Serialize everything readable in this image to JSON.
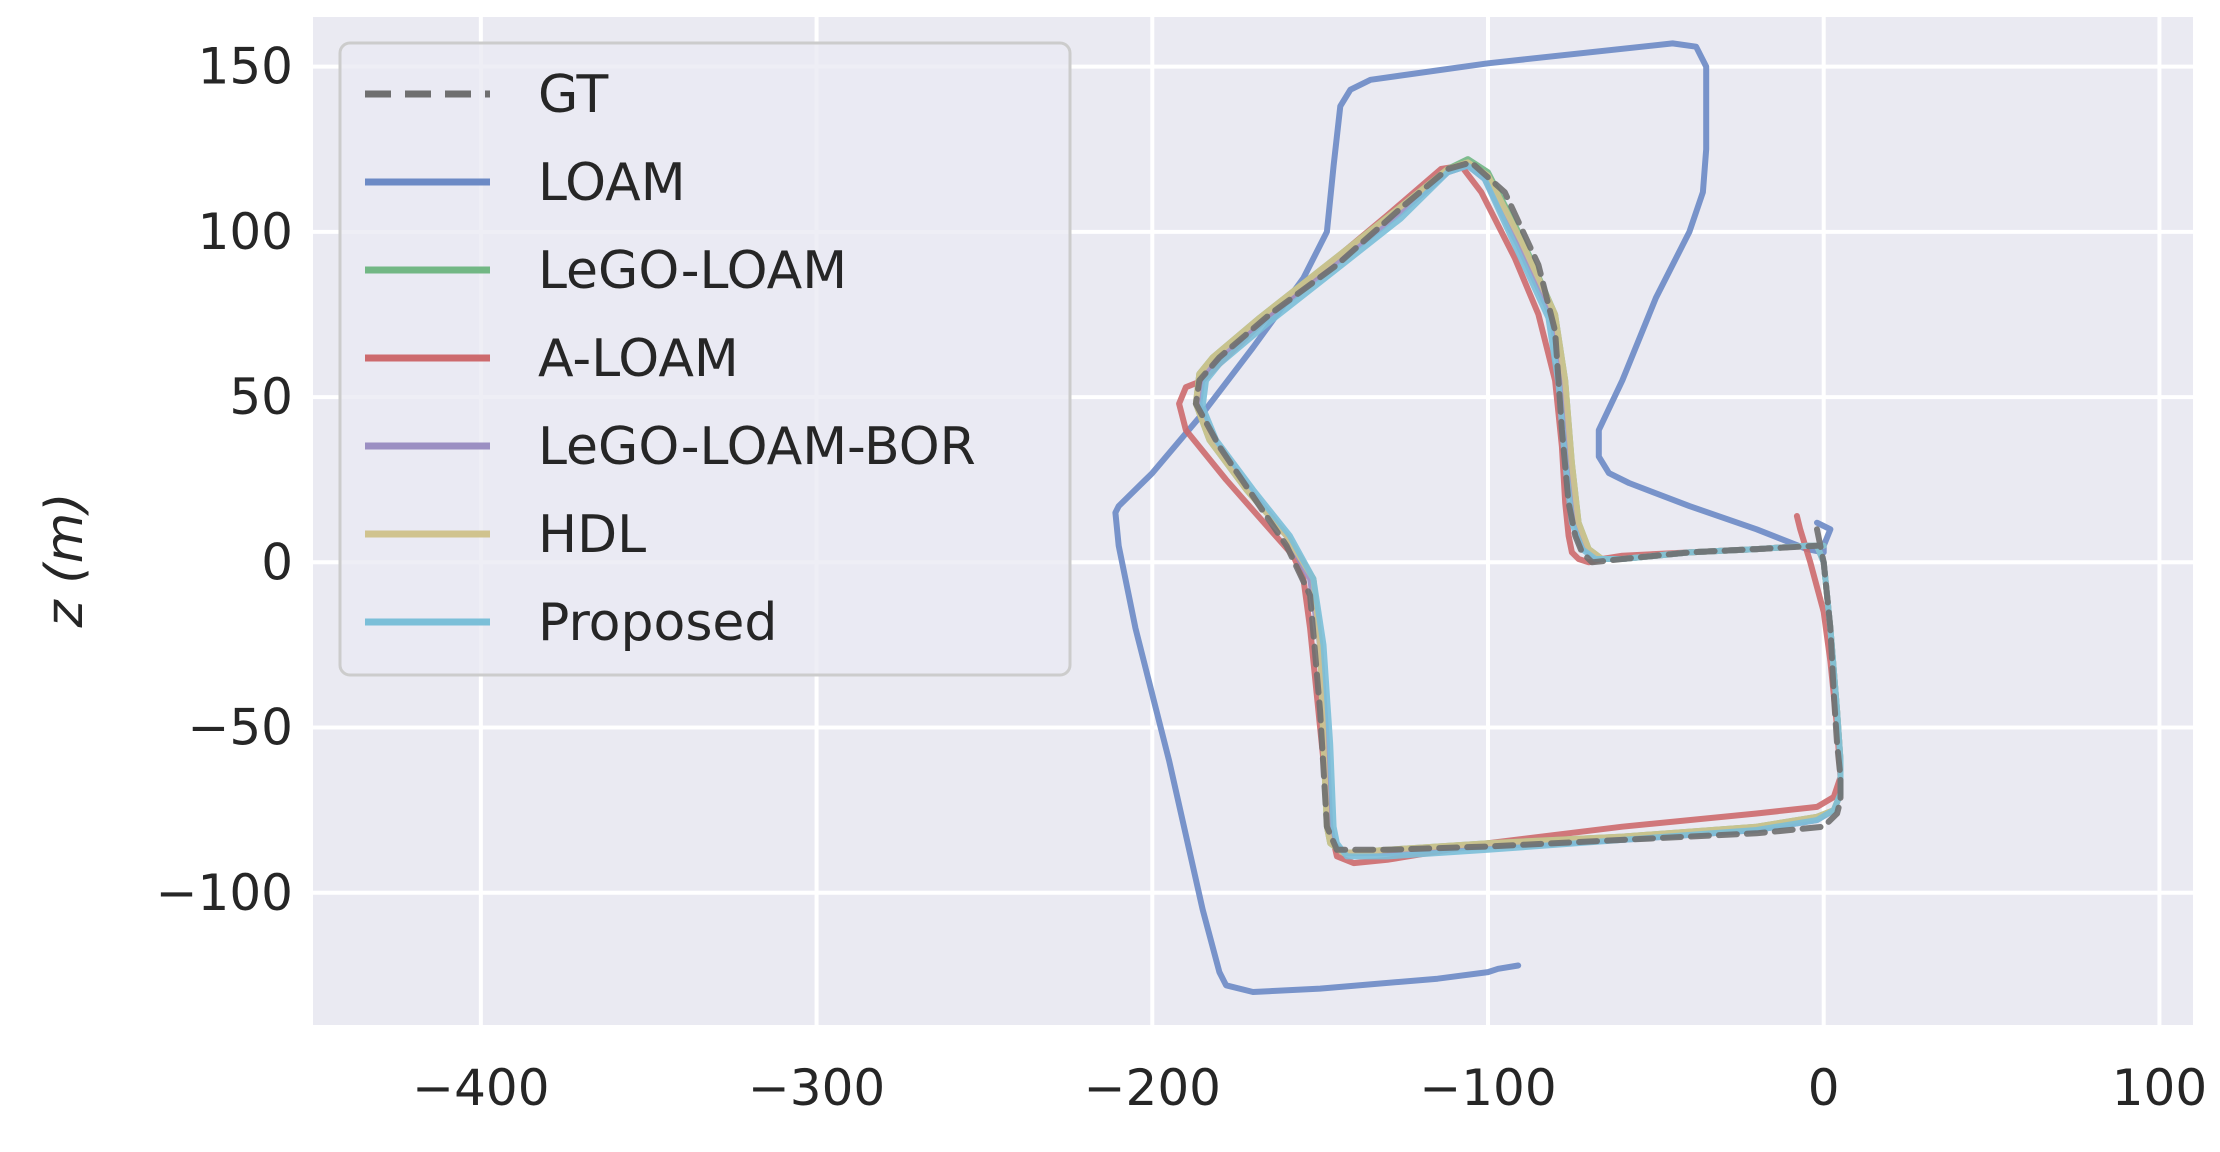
{
  "chart_data": {
    "type": "line",
    "title": "",
    "xlabel": "",
    "ylabel": "z (m)",
    "xlim": [
      -450,
      110
    ],
    "ylim": [
      -140,
      165
    ],
    "xticks": [
      -400,
      -300,
      -200,
      -100,
      0,
      100
    ],
    "yticks": [
      -100,
      -50,
      0,
      50,
      100,
      150
    ],
    "xtick_labels": [
      "−400",
      "−300",
      "−200",
      "−100",
      "0",
      "100"
    ],
    "ytick_labels": [
      "−100",
      "−50",
      "0",
      "50",
      "100",
      "150"
    ],
    "grid": true,
    "legend_position": "top-left",
    "colors": {
      "background": "#eaeaf2",
      "grid": "#ffffff",
      "GT": "#6f6f6f",
      "LOAM": "#6c8ac5",
      "LeGO-LOAM": "#72b784",
      "A-LOAM": "#cd6a6d",
      "LeGO-LOAM-BOR": "#9b8fc2",
      "HDL": "#d0c38e",
      "Proposed": "#7bbfd8"
    },
    "series": [
      {
        "name": "GT",
        "style": "dashed",
        "x": [
          -2,
          0,
          2,
          3,
          4,
          5,
          5,
          4,
          0,
          -20,
          -60,
          -100,
          -130,
          -145,
          -148,
          -150,
          -153,
          -160,
          -170,
          -180,
          -187,
          -186,
          -180,
          -165,
          -145,
          -125,
          -112,
          -105,
          -95,
          -85,
          -80,
          -78,
          -76,
          -74,
          -72,
          -69,
          -60,
          -40,
          -20,
          -2
        ],
        "y": [
          10,
          0,
          -20,
          -40,
          -55,
          -65,
          -72,
          -76,
          -80,
          -82,
          -84,
          -86,
          -87,
          -87,
          -80,
          -45,
          -10,
          5,
          20,
          35,
          48,
          55,
          62,
          75,
          90,
          108,
          119,
          121,
          112,
          90,
          70,
          40,
          18,
          8,
          3,
          0,
          1,
          3,
          4,
          5
        ]
      },
      {
        "name": "LOAM",
        "style": "solid",
        "x": [
          -91,
          -97,
          -100,
          -115,
          -150,
          -170,
          -178,
          -180,
          -185,
          -195,
          -205,
          -210,
          -211,
          -210,
          -200,
          -185,
          -170,
          -155,
          -148,
          -146,
          -144,
          -141,
          -135,
          -100,
          -45,
          -38,
          -35,
          -35,
          -36,
          -40,
          -50,
          -60,
          -67,
          -67,
          -64,
          -58,
          -40,
          -20,
          -5,
          0,
          0,
          2,
          -2
        ],
        "y": [
          -122,
          -123,
          -124,
          -126,
          -129,
          -130,
          -128,
          -124,
          -105,
          -60,
          -20,
          5,
          15,
          17,
          27,
          45,
          65,
          86,
          100,
          120,
          138,
          143,
          146,
          151,
          157,
          156,
          150,
          125,
          112,
          100,
          80,
          55,
          40,
          32,
          27,
          24,
          17,
          10,
          4,
          3,
          5,
          10,
          12
        ]
      },
      {
        "name": "LeGO-LOAM",
        "style": "solid",
        "x": [
          -2,
          0,
          2,
          4,
          5,
          5,
          3,
          -2,
          -20,
          -60,
          -100,
          -130,
          -143,
          -147,
          -148,
          -149,
          -150,
          -152,
          -160,
          -172,
          -183,
          -187,
          -186,
          -182,
          -168,
          -148,
          -128,
          -112,
          -106,
          -100,
          -90,
          -80,
          -77,
          -75,
          -73,
          -70,
          -66,
          -60,
          -40,
          -20,
          -5,
          0
        ],
        "y": [
          5,
          0,
          -20,
          -45,
          -60,
          -70,
          -75,
          -77,
          -80,
          -83,
          -85,
          -87,
          -88,
          -85,
          -80,
          -55,
          -25,
          -5,
          8,
          22,
          37,
          48,
          57,
          62,
          74,
          90,
          106,
          119,
          122,
          118,
          98,
          75,
          55,
          30,
          12,
          4,
          1,
          1,
          3,
          4,
          5,
          5
        ]
      },
      {
        "name": "A-LOAM",
        "style": "solid",
        "x": [
          -8,
          -7,
          -4,
          0,
          2,
          4,
          5,
          3,
          -2,
          -20,
          -60,
          -100,
          -130,
          -140,
          -145,
          -147,
          -150,
          -153,
          -155,
          -158,
          -165,
          -178,
          -190,
          -192,
          -190,
          -185,
          -170,
          -150,
          -130,
          -114,
          -108,
          -102,
          -92,
          -85,
          -80,
          -78,
          -77,
          -76,
          -75,
          -73,
          -70,
          -66,
          -60,
          -40,
          -20,
          -5
        ],
        "y": [
          14,
          10,
          0,
          -15,
          -30,
          -50,
          -65,
          -71,
          -74,
          -76,
          -80,
          -85,
          -90,
          -91,
          -89,
          -80,
          -50,
          -20,
          -5,
          2,
          10,
          25,
          40,
          48,
          53,
          55,
          70,
          88,
          105,
          119,
          120,
          112,
          92,
          75,
          55,
          35,
          18,
          8,
          3,
          1,
          0,
          1,
          2,
          3,
          4,
          5
        ]
      },
      {
        "name": "LeGO-LOAM-BOR",
        "style": "solid",
        "x": [
          -2,
          0,
          2,
          4,
          5,
          5,
          3,
          -2,
          -20,
          -60,
          -100,
          -130,
          -143,
          -146,
          -147,
          -148,
          -150,
          -153,
          -160,
          -171,
          -182,
          -186,
          -185,
          -181,
          -167,
          -147,
          -127,
          -112,
          -106,
          -101,
          -91,
          -81,
          -78,
          -76,
          -74,
          -71,
          -67,
          -60,
          -40,
          -20,
          -5,
          0
        ],
        "y": [
          5,
          0,
          -20,
          -45,
          -60,
          -70,
          -75,
          -78,
          -81,
          -84,
          -86,
          -88,
          -88,
          -85,
          -80,
          -55,
          -25,
          -5,
          8,
          22,
          37,
          48,
          56,
          61,
          73,
          89,
          105,
          118,
          120,
          116,
          96,
          74,
          54,
          30,
          12,
          4,
          1,
          1,
          3,
          4,
          5,
          5
        ]
      },
      {
        "name": "HDL",
        "style": "solid",
        "x": [
          -2,
          0,
          2,
          4,
          5,
          5,
          3,
          -2,
          -20,
          -60,
          -100,
          -130,
          -143,
          -147,
          -148,
          -149,
          -150,
          -152,
          -160,
          -172,
          -183,
          -187,
          -186,
          -182,
          -168,
          -148,
          -128,
          -112,
          -106,
          -100,
          -90,
          -80,
          -77,
          -75,
          -73,
          -70,
          -66,
          -60,
          -40,
          -20,
          -5,
          0
        ],
        "y": [
          5,
          0,
          -20,
          -45,
          -60,
          -70,
          -75,
          -77,
          -80,
          -83,
          -85,
          -87,
          -88,
          -85,
          -80,
          -55,
          -25,
          -5,
          8,
          22,
          37,
          48,
          57,
          62,
          74,
          90,
          106,
          119,
          121,
          117,
          97,
          75,
          55,
          30,
          12,
          4,
          1,
          1,
          3,
          4,
          5,
          5
        ]
      },
      {
        "name": "Proposed",
        "style": "solid",
        "x": [
          -2,
          0,
          2,
          4,
          5,
          5,
          3,
          -2,
          -20,
          -60,
          -100,
          -130,
          -142,
          -145,
          -146,
          -147,
          -149,
          -152,
          -159,
          -170,
          -181,
          -185,
          -184,
          -180,
          -166,
          -146,
          -126,
          -112,
          -106,
          -101,
          -92,
          -82,
          -79,
          -77,
          -75,
          -72,
          -68,
          -60,
          -40,
          -20,
          -5,
          0
        ],
        "y": [
          5,
          0,
          -20,
          -45,
          -60,
          -70,
          -75,
          -78,
          -81,
          -84,
          -87,
          -89,
          -89,
          -85,
          -80,
          -55,
          -25,
          -5,
          8,
          22,
          37,
          47,
          55,
          60,
          72,
          88,
          104,
          118,
          120,
          116,
          96,
          74,
          54,
          30,
          12,
          4,
          1,
          1,
          3,
          4,
          5,
          5
        ]
      }
    ]
  }
}
